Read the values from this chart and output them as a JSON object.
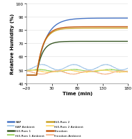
{
  "xlabel": "Time (min)",
  "ylabel": "Relative Humidity (%)",
  "xlim": [
    -20,
    180
  ],
  "ylim": [
    40,
    100
  ],
  "xticks": [
    -20,
    30,
    80,
    130,
    180
  ],
  "yticks": [
    40,
    50,
    60,
    70,
    80,
    90,
    100
  ],
  "series": {
    "KAP": {
      "color": "#4472C4",
      "lw": 1.0,
      "asymptote": 89.0,
      "start": 46,
      "tau": 18
    },
    "Hill-Rom 1": {
      "color": "#375623",
      "lw": 1.0,
      "asymptote": 71.5,
      "start": 46,
      "tau": 11
    },
    "Hill-Rom 2": {
      "color": "#C9A227",
      "lw": 1.0,
      "asymptote": 81.5,
      "start": 46,
      "tau": 13
    },
    "Freedom": {
      "color": "#C55A11",
      "lw": 1.0,
      "asymptote": 82.5,
      "start": 46,
      "tau": 13
    },
    "KAP Ambient": {
      "color": "#9DC3E6",
      "lw": 0.7,
      "mean": 52.0,
      "amp": 2.0,
      "freq": 0.1,
      "phase": 0.5
    },
    "Hill-Rom 1 Ambient": {
      "color": "#92D050",
      "lw": 0.7,
      "mean": 49.5,
      "amp": 0.8,
      "freq": 0.09,
      "phase": 1.2
    },
    "Hill-Rom 2 Ambient": {
      "color": "#FFD966",
      "lw": 0.7,
      "mean": 49.0,
      "amp": 0.8,
      "freq": 0.09,
      "phase": 2.5
    },
    "Freedom Ambient": {
      "color": "#F4B183",
      "lw": 0.7,
      "mean": 48.0,
      "amp": 1.2,
      "freq": 0.1,
      "phase": 3.8
    }
  },
  "main_order": [
    "KAP",
    "Hill-Rom 1",
    "Hill-Rom 2",
    "Freedom"
  ],
  "ambient_order": [
    "KAP Ambient",
    "Hill-Rom 1 Ambient",
    "Hill-Rom 2 Ambient",
    "Freedom Ambient"
  ],
  "legend_order": [
    "KAP",
    "KAP Ambient",
    "Hill-Rom 1",
    "Hill-Rom 1 Ambient",
    "Hill-Rom 2",
    "Hill-Rom 2 Ambient",
    "Freedom",
    "Freedom Ambient"
  ],
  "figsize": [
    1.9,
    2.01
  ],
  "dpi": 100
}
